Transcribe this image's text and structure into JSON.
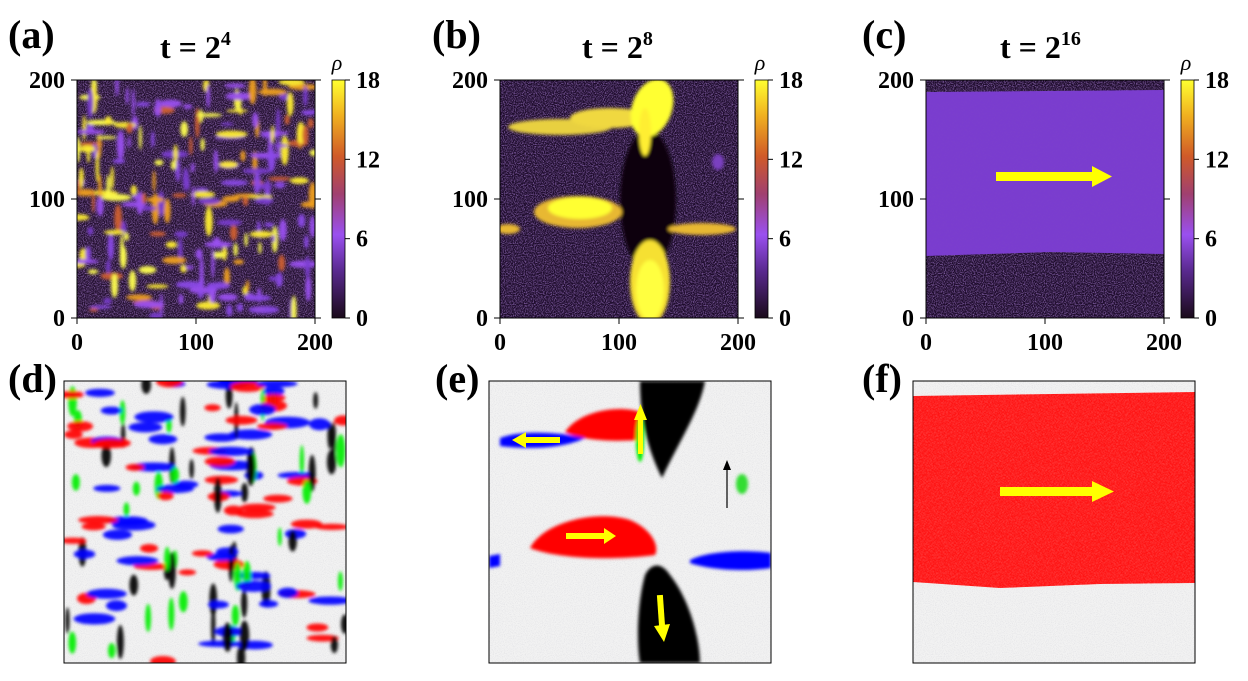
{
  "panel_labels": [
    "(a)",
    "(b)",
    "(c)",
    "(d)",
    "(e)",
    "(f)"
  ],
  "titles": [
    {
      "base": "t = 2",
      "exp": "4"
    },
    {
      "base": "t = 2",
      "exp": "8"
    },
    {
      "base": "t = 2",
      "exp": "16"
    }
  ],
  "colorbar": {
    "label": "ρ",
    "ticks": [
      "18",
      "12",
      "6",
      "0"
    ],
    "min": 0,
    "max": 18
  },
  "colors": {
    "heat_dark": "#2a1040",
    "heat_purple": "#7a3cd0",
    "heat_orange": "#e07830",
    "heat_yellow": "#ffff00",
    "arrow": "#ffff00",
    "red": "#ff0000",
    "blue": "#0000ff",
    "green": "#00ee00",
    "black": "#000000"
  },
  "chart_data": [
    {
      "type": "heatmap",
      "panel": "(a)",
      "title": "t = 2^4",
      "x_ticks": [
        "0",
        "100",
        "200"
      ],
      "y_ticks": [
        "0",
        "100",
        "200"
      ],
      "xlim": [
        0,
        200
      ],
      "ylim": [
        0,
        200
      ],
      "colorbar_range": [
        0,
        18
      ]
    },
    {
      "type": "heatmap",
      "panel": "(b)",
      "title": "t = 2^8",
      "x_ticks": [
        "0",
        "100",
        "200"
      ],
      "y_ticks": [
        "0",
        "100",
        "200"
      ],
      "xlim": [
        0,
        200
      ],
      "ylim": [
        0,
        200
      ],
      "colorbar_range": [
        0,
        18
      ]
    },
    {
      "type": "heatmap",
      "panel": "(c)",
      "title": "t = 2^16",
      "x_ticks": [
        "0",
        "100",
        "200"
      ],
      "y_ticks": [
        "0",
        "100",
        "200"
      ],
      "xlim": [
        0,
        200
      ],
      "ylim": [
        0,
        200
      ],
      "colorbar_range": [
        0,
        18
      ]
    },
    {
      "type": "heatmap",
      "panel": "(d)",
      "colors": [
        "red",
        "blue",
        "green",
        "black"
      ]
    },
    {
      "type": "heatmap",
      "panel": "(e)",
      "colors": [
        "red",
        "blue",
        "green",
        "black"
      ]
    },
    {
      "type": "heatmap",
      "panel": "(f)",
      "colors": [
        "red"
      ]
    }
  ]
}
